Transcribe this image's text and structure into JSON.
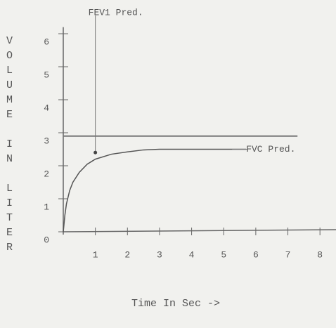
{
  "chart_data": {
    "type": "line",
    "xlabel": "Time In Sec ->",
    "ylabel": "VOLUME IN LITER",
    "x": [
      0,
      0.05,
      0.1,
      0.2,
      0.3,
      0.5,
      0.75,
      1,
      1.5,
      2,
      2.5,
      3,
      4,
      5,
      5.7
    ],
    "series": [
      {
        "color": "#555555",
        "values": [
          0,
          0.5,
          0.85,
          1.25,
          1.5,
          1.8,
          2.05,
          2.2,
          2.35,
          2.42,
          2.48,
          2.5,
          2.5,
          2.5,
          2.5
        ]
      }
    ],
    "reference_line": {
      "y": 2.9,
      "xmax": 7.3
    },
    "annotations": [
      {
        "text": "FEV1 Pred.",
        "x": 1,
        "y": 2.4
      },
      {
        "text": "FVC Pred.",
        "x": 5.7,
        "y": 2.5
      }
    ],
    "xlim": [
      0,
      8.5
    ],
    "ylim": [
      0,
      6.2
    ],
    "xticks": [
      1,
      2,
      3,
      4,
      5,
      6,
      7,
      8
    ],
    "yticks": [
      0,
      1,
      2,
      3,
      4,
      5,
      6
    ],
    "grid": false
  }
}
